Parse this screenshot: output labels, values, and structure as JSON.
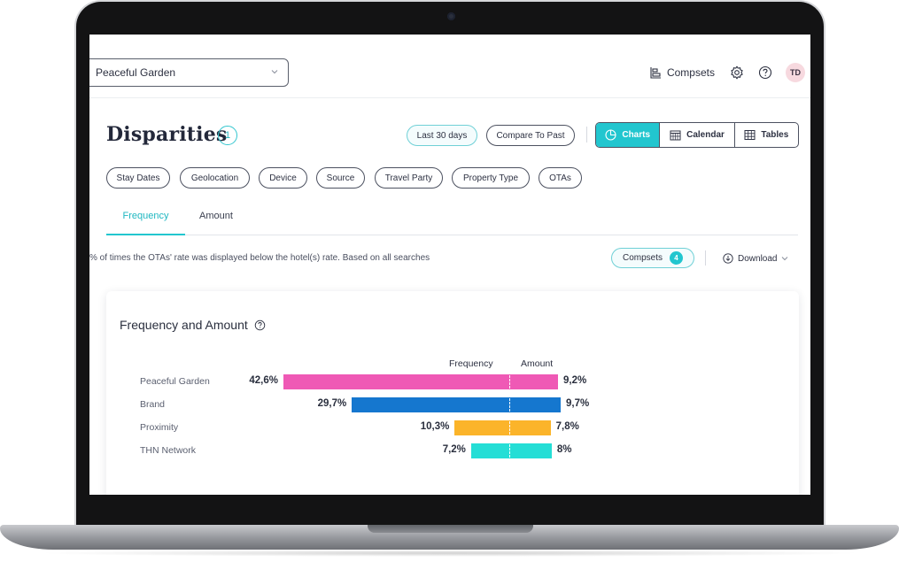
{
  "header": {
    "hotel_select": "Peaceful Garden",
    "compsets_label": "Compsets",
    "avatar_initials": "TD"
  },
  "page": {
    "title": "Disparities",
    "title_count": "1",
    "date_range": "Last 30 days",
    "compare_label": "Compare To Past",
    "views": [
      {
        "label": "Charts",
        "icon": "pie-chart-icon",
        "active": true
      },
      {
        "label": "Calendar",
        "icon": "calendar-icon",
        "active": false
      },
      {
        "label": "Tables",
        "icon": "table-icon",
        "active": false
      }
    ]
  },
  "filters": [
    "Stay Dates",
    "Geolocation",
    "Device",
    "Source",
    "Travel Party",
    "Property Type",
    "OTAs"
  ],
  "tabs": [
    {
      "label": "Frequency",
      "active": true
    },
    {
      "label": "Amount",
      "active": false
    }
  ],
  "info": {
    "description": "% of times the OTAs' rate was displayed below the hotel(s) rate. Based on all searches",
    "compsets_label": "Compsets",
    "compsets_count": "4",
    "download_label": "Download"
  },
  "card": {
    "title": "Frequency and Amount"
  },
  "chart_data": {
    "type": "bar",
    "orientation": "diverging-horizontal",
    "title": "Frequency and Amount",
    "legend": [
      "Frequency",
      "Amount"
    ],
    "categories": [
      "Peaceful Garden",
      "Brand",
      "Proximity",
      "THN Network"
    ],
    "series": [
      {
        "name": "Frequency",
        "values": [
          42.6,
          29.7,
          10.3,
          7.2
        ],
        "labels": [
          "42,6%",
          "29,7%",
          "10,3%",
          "7,2%"
        ]
      },
      {
        "name": "Amount",
        "values": [
          9.2,
          9.7,
          7.8,
          8
        ],
        "labels": [
          "9,2%",
          "9,7%",
          "7,8%",
          "8%"
        ]
      }
    ],
    "colors": [
      "#ef59b5",
      "#1577cf",
      "#fbb42a",
      "#25ded6"
    ]
  }
}
